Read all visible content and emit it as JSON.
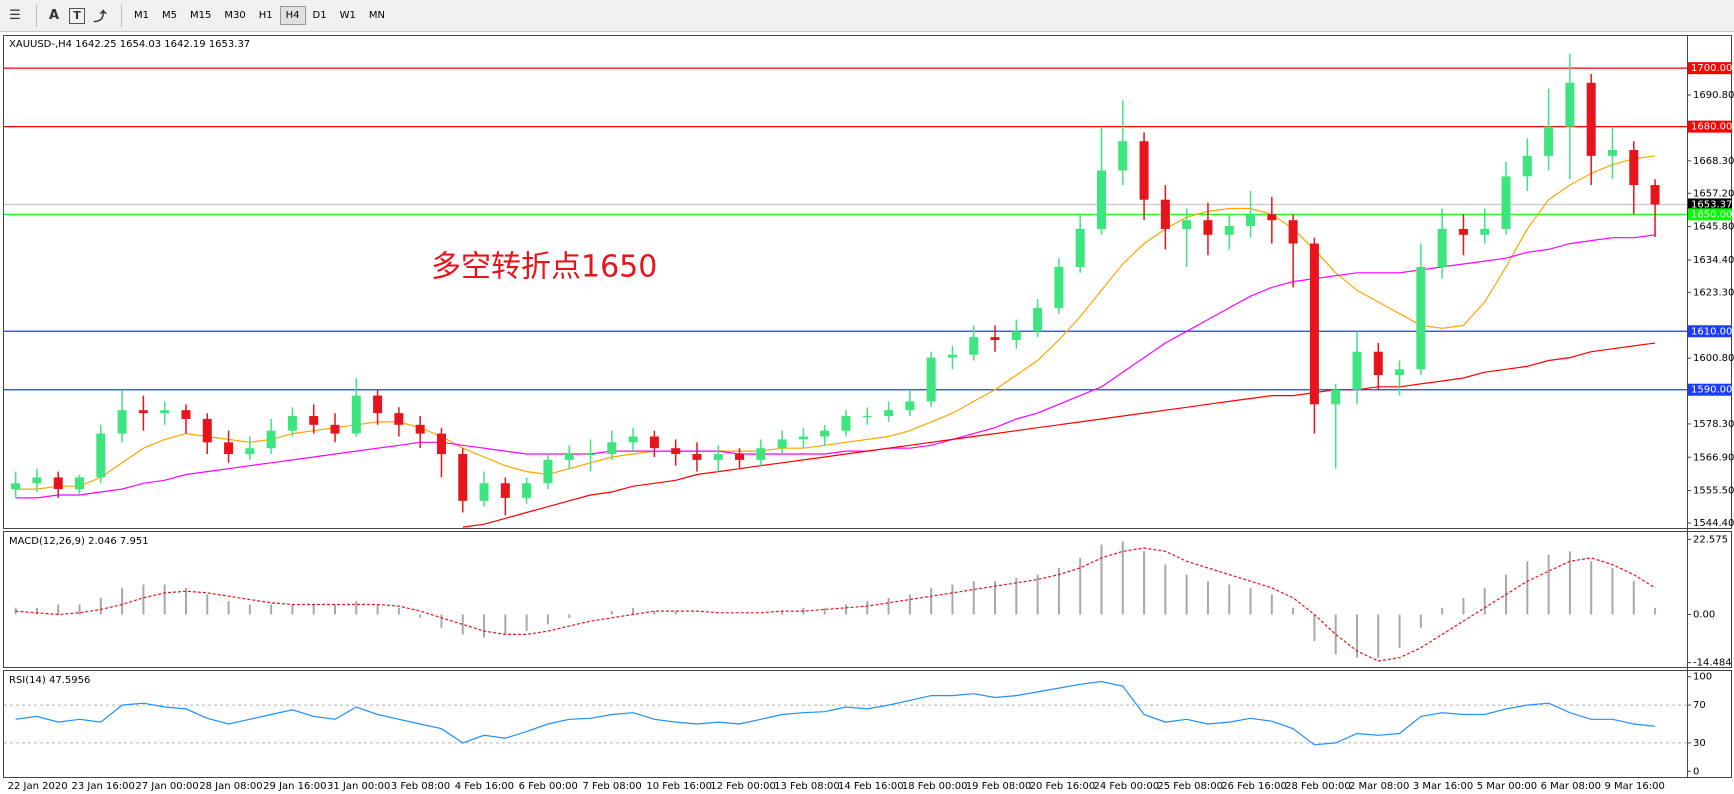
{
  "toolbar": {
    "tools": [
      "A",
      "T"
    ],
    "timeframes": [
      "M1",
      "M5",
      "M15",
      "M30",
      "H1",
      "H4",
      "D1",
      "W1",
      "MN"
    ]
  },
  "chart_data": [
    {
      "type": "candlestick",
      "title": "XAUUSD-,H4  1642.25 1654.03 1642.19 1653.37",
      "annotation": "多空转折点1650",
      "categories": [
        "22 Jan 2020",
        null,
        null,
        "23 Jan 16:00",
        null,
        null,
        "27 Jan 00:00",
        null,
        null,
        "28 Jan 08:00",
        null,
        null,
        "29 Jan 16:00",
        null,
        null,
        "31 Jan 00:00",
        null,
        null,
        "3 Feb 08:00",
        null,
        null,
        "4 Feb 16:00",
        null,
        null,
        "6 Feb 00:00",
        null,
        null,
        "7 Feb 08:00",
        null,
        null,
        "10 Feb 16:00",
        null,
        null,
        "12 Feb 00:00",
        null,
        null,
        "13 Feb 08:00",
        null,
        null,
        "14 Feb 16:00",
        null,
        null,
        "18 Feb 00:00",
        null,
        null,
        "19 Feb 08:00",
        null,
        null,
        "20 Feb 16:00",
        null,
        null,
        "24 Feb 00:00",
        null,
        null,
        "25 Feb 08:00",
        null,
        null,
        "26 Feb 16:00",
        null,
        null,
        "28 Feb 00:00",
        null,
        null,
        "2 Mar 08:00",
        null,
        null,
        "3 Mar 16:00",
        null,
        null,
        "5 Mar 00:00",
        null,
        null,
        "6 Mar 08:00",
        null,
        null,
        "9 Mar 16:00",
        null,
        null
      ],
      "ohlc": [
        [
          1556,
          1562,
          1553,
          1558
        ],
        [
          1558,
          1563,
          1555,
          1560
        ],
        [
          1560,
          1562,
          1553,
          1556
        ],
        [
          1556,
          1561,
          1554,
          1560
        ],
        [
          1560,
          1578,
          1558,
          1575
        ],
        [
          1575,
          1590,
          1572,
          1583
        ],
        [
          1583,
          1588,
          1576,
          1582
        ],
        [
          1582,
          1586,
          1578,
          1583
        ],
        [
          1583,
          1585,
          1575,
          1580
        ],
        [
          1580,
          1582,
          1568,
          1572
        ],
        [
          1572,
          1576,
          1565,
          1568
        ],
        [
          1568,
          1574,
          1566,
          1570
        ],
        [
          1570,
          1580,
          1568,
          1576
        ],
        [
          1576,
          1584,
          1574,
          1581
        ],
        [
          1581,
          1585,
          1575,
          1578
        ],
        [
          1578,
          1582,
          1572,
          1575
        ],
        [
          1575,
          1594,
          1574,
          1588
        ],
        [
          1588,
          1590,
          1578,
          1582
        ],
        [
          1582,
          1584,
          1574,
          1578
        ],
        [
          1578,
          1581,
          1570,
          1575
        ],
        [
          1575,
          1577,
          1560,
          1568
        ],
        [
          1568,
          1570,
          1548,
          1552
        ],
        [
          1552,
          1562,
          1550,
          1558
        ],
        [
          1558,
          1560,
          1547,
          1553
        ],
        [
          1553,
          1560,
          1551,
          1558
        ],
        [
          1558,
          1568,
          1556,
          1566
        ],
        [
          1566,
          1571,
          1563,
          1568
        ],
        [
          1568,
          1573,
          1562,
          1568
        ],
        [
          1568,
          1576,
          1566,
          1572
        ],
        [
          1572,
          1577,
          1569,
          1574
        ],
        [
          1574,
          1576,
          1567,
          1570
        ],
        [
          1570,
          1573,
          1564,
          1568
        ],
        [
          1568,
          1572,
          1562,
          1566
        ],
        [
          1566,
          1571,
          1562,
          1568
        ],
        [
          1568,
          1570,
          1563,
          1566
        ],
        [
          1566,
          1573,
          1564,
          1570
        ],
        [
          1570,
          1576,
          1568,
          1573
        ],
        [
          1573,
          1577,
          1570,
          1574
        ],
        [
          1574,
          1578,
          1571,
          1576
        ],
        [
          1576,
          1583,
          1574,
          1581
        ],
        [
          1581,
          1584,
          1578,
          1581
        ],
        [
          1581,
          1586,
          1579,
          1583
        ],
        [
          1583,
          1590,
          1581,
          1586
        ],
        [
          1586,
          1603,
          1584,
          1601
        ],
        [
          1601,
          1605,
          1597,
          1602
        ],
        [
          1602,
          1612,
          1600,
          1608
        ],
        [
          1608,
          1612,
          1603,
          1607
        ],
        [
          1607,
          1614,
          1604,
          1610
        ],
        [
          1610,
          1621,
          1608,
          1618
        ],
        [
          1618,
          1635,
          1616,
          1632
        ],
        [
          1632,
          1650,
          1630,
          1645
        ],
        [
          1645,
          1680,
          1643,
          1665
        ],
        [
          1665,
          1689,
          1660,
          1675
        ],
        [
          1675,
          1678,
          1648,
          1655
        ],
        [
          1655,
          1660,
          1638,
          1645
        ],
        [
          1645,
          1652,
          1632,
          1648
        ],
        [
          1648,
          1654,
          1636,
          1643
        ],
        [
          1643,
          1650,
          1638,
          1646
        ],
        [
          1646,
          1658,
          1642,
          1650
        ],
        [
          1650,
          1656,
          1640,
          1648
        ],
        [
          1648,
          1650,
          1625,
          1640
        ],
        [
          1640,
          1642,
          1575,
          1585
        ],
        [
          1585,
          1592,
          1563,
          1590
        ],
        [
          1590,
          1610,
          1585,
          1603
        ],
        [
          1603,
          1606,
          1590,
          1595
        ],
        [
          1595,
          1600,
          1588,
          1597
        ],
        [
          1597,
          1640,
          1595,
          1632
        ],
        [
          1632,
          1652,
          1628,
          1645
        ],
        [
          1645,
          1650,
          1636,
          1643
        ],
        [
          1643,
          1652,
          1640,
          1645
        ],
        [
          1645,
          1668,
          1643,
          1663
        ],
        [
          1663,
          1676,
          1658,
          1670
        ],
        [
          1670,
          1693,
          1665,
          1680
        ],
        [
          1680,
          1705,
          1662,
          1695
        ],
        [
          1695,
          1698,
          1660,
          1670
        ],
        [
          1670,
          1680,
          1662,
          1672
        ],
        [
          1672,
          1675,
          1650,
          1660
        ],
        [
          1660,
          1662,
          1642.19,
          1653.37
        ]
      ],
      "up_color": "#3de57f",
      "down_color": "#e8141b",
      "series": [
        {
          "color": "#ffa500",
          "values": [
            1556,
            1556,
            1557,
            1557,
            1560,
            1565,
            1570,
            1573,
            1575,
            1574,
            1573,
            1572,
            1573,
            1575,
            1576,
            1577,
            1578,
            1579,
            1579,
            1577,
            1574,
            1570,
            1567,
            1564,
            1562,
            1561,
            1563,
            1565,
            1567,
            1568,
            1569,
            1569,
            1569,
            1569,
            1569,
            1569,
            1570,
            1570,
            1571,
            1572,
            1573,
            1574,
            1576,
            1579,
            1582,
            1586,
            1590,
            1595,
            1600,
            1607,
            1615,
            1624,
            1633,
            1640,
            1645,
            1649,
            1651,
            1652,
            1652,
            1650,
            1645,
            1638,
            1630,
            1624,
            1620,
            1616,
            1612,
            1611,
            1612,
            1620,
            1632,
            1645,
            1655,
            1660,
            1664,
            1667,
            1669,
            1670
          ]
        },
        {
          "color": "#ff00ff",
          "values": [
            1553,
            1553,
            1554,
            1554,
            1555,
            1556,
            1558,
            1559,
            1561,
            1562,
            1563,
            1564,
            1565,
            1566,
            1567,
            1568,
            1569,
            1570,
            1571,
            1572,
            1572,
            1571,
            1570,
            1569,
            1568,
            1568,
            1568,
            1568,
            1569,
            1569,
            1569,
            1569,
            1569,
            1569,
            1568,
            1568,
            1568,
            1568,
            1568,
            1569,
            1569,
            1570,
            1570,
            1571,
            1573,
            1575,
            1577,
            1580,
            1582,
            1585,
            1588,
            1591,
            1596,
            1601,
            1606,
            1610,
            1614,
            1618,
            1622,
            1625,
            1627,
            1628,
            1629,
            1630,
            1630,
            1630,
            1631,
            1632,
            1633,
            1634,
            1635,
            1637,
            1638,
            1640,
            1641,
            1642,
            1642,
            1643
          ]
        },
        {
          "color": "#ff0000",
          "values": [
            null,
            null,
            null,
            null,
            null,
            null,
            null,
            null,
            null,
            null,
            null,
            null,
            null,
            null,
            null,
            null,
            null,
            null,
            null,
            null,
            null,
            1543,
            1544,
            1546,
            1548,
            1550,
            1552,
            1554,
            1555,
            1557,
            1558,
            1559,
            1561,
            1562,
            1563,
            1564,
            1565,
            1566,
            1567,
            1568,
            1569,
            1570,
            1571,
            1572,
            1573,
            1574,
            1575,
            1576,
            1577,
            1578,
            1579,
            1580,
            1581,
            1582,
            1583,
            1584,
            1585,
            1586,
            1587,
            1588,
            1588,
            1589,
            1590,
            1590,
            1591,
            1591,
            1592,
            1593,
            1594,
            1596,
            1597,
            1598,
            1600,
            1601,
            1603,
            1604,
            1605,
            1606
          ]
        }
      ],
      "levels": [
        {
          "value": 1700,
          "label": "1700.00",
          "color": "#ff0000"
        },
        {
          "value": 1680,
          "label": "1680.00",
          "color": "#ff0000"
        },
        {
          "value": 1653.37,
          "label": "1653.37",
          "color": "#c8c8c8",
          "tag_color": "#000000"
        },
        {
          "value": 1650,
          "label": "1650.00",
          "color": "#00ff00"
        },
        {
          "value": 1610,
          "label": "1610.00",
          "color": "#1a3cff"
        },
        {
          "value": 1590,
          "label": "1590.00",
          "color": "#1a3cff"
        }
      ],
      "ylim": [
        1542.7,
        1711
      ],
      "yticks": [
        {
          "value": 1690.8,
          "label": "1690.80"
        },
        {
          "value": 1668.3,
          "label": "1668.30"
        },
        {
          "value": 1657.2,
          "label": "1657.20"
        },
        {
          "value": 1645.8,
          "label": "1645.80"
        },
        {
          "value": 1634.4,
          "label": "1634.40"
        },
        {
          "value": 1623.3,
          "label": "1623.30"
        },
        {
          "value": 1600.8,
          "label": "1600.80"
        },
        {
          "value": 1578.3,
          "label": "1578.30"
        },
        {
          "value": 1566.9,
          "label": "1566.90"
        },
        {
          "value": 1555.5,
          "label": "1555.50"
        },
        {
          "value": 1544.4,
          "label": "1544.40"
        }
      ]
    },
    {
      "type": "macd",
      "title": "MACD(12,26,9) 2.046 7.951",
      "series": [
        {
          "kind": "histogram",
          "color": "#a8a8a8",
          "values": [
            2,
            2,
            3,
            3,
            5,
            8,
            9,
            9,
            8,
            6,
            4,
            3,
            3,
            3,
            3,
            3,
            4,
            3,
            2,
            -1,
            -4,
            -6,
            -7,
            -6,
            -5,
            -3,
            -1,
            0,
            1,
            2,
            1,
            1,
            0,
            0,
            0,
            0,
            1,
            2,
            2,
            3,
            4,
            5,
            6,
            8,
            9,
            10,
            10,
            11,
            12,
            14,
            17,
            21,
            22,
            19,
            15,
            12,
            10,
            9,
            8,
            6,
            2,
            -8,
            -12,
            -13,
            -13,
            -10,
            -4,
            2,
            5,
            8,
            12,
            16,
            18,
            19,
            16,
            14,
            10,
            2
          ]
        },
        {
          "kind": "dashed",
          "color": "#e8141b",
          "values": [
            1,
            0.5,
            0,
            0.5,
            1.5,
            3,
            5,
            6.5,
            7,
            6.5,
            5.5,
            4.5,
            3.5,
            3,
            3,
            3,
            3,
            3,
            2.5,
            1,
            -1,
            -3,
            -5,
            -6,
            -6,
            -5,
            -3.5,
            -2,
            -1,
            0,
            1,
            1,
            1,
            0.5,
            0.5,
            0.5,
            1,
            1,
            1.5,
            2,
            2.5,
            3.5,
            4.5,
            5.5,
            6.5,
            7.5,
            8.5,
            9.5,
            10.5,
            12,
            14,
            17,
            19,
            20,
            19,
            16,
            14,
            12,
            10,
            8,
            5,
            0,
            -6,
            -11,
            -14,
            -13,
            -10,
            -6,
            -2,
            2,
            6,
            10,
            13,
            16,
            17,
            15,
            12,
            8
          ]
        }
      ],
      "ylim": [
        -15.5,
        24.5
      ],
      "yticks": [
        22.575,
        {
          "value": 0,
          "label": "0.00"
        },
        -14.484
      ]
    },
    {
      "type": "line",
      "title": "RSI(14) 47.5956",
      "series": [
        {
          "color": "#1e90ff",
          "values": [
            55,
            58,
            52,
            55,
            52,
            70,
            72,
            68,
            66,
            56,
            50,
            55,
            60,
            65,
            58,
            55,
            68,
            60,
            55,
            50,
            45,
            30,
            38,
            35,
            42,
            50,
            55,
            56,
            60,
            62,
            55,
            52,
            50,
            52,
            50,
            55,
            60,
            62,
            63,
            68,
            66,
            70,
            75,
            80,
            80,
            82,
            78,
            80,
            84,
            88,
            92,
            95,
            90,
            60,
            52,
            55,
            50,
            52,
            56,
            53,
            45,
            28,
            30,
            40,
            38,
            40,
            58,
            62,
            60,
            60,
            66,
            70,
            72,
            62,
            55,
            55,
            50,
            47.6
          ]
        }
      ],
      "levels": [
        {
          "value": 70,
          "color": "#c0c0c0",
          "dash": "3,3"
        },
        {
          "value": 30,
          "color": "#c0c0c0",
          "dash": "3,3"
        }
      ],
      "ylim": [
        -5,
        105
      ],
      "yticks": [
        100,
        70,
        30,
        0
      ]
    }
  ]
}
